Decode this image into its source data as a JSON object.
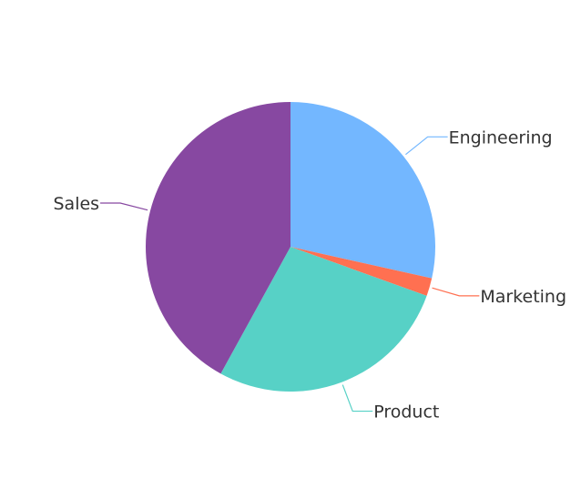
{
  "chart_data": {
    "type": "pie",
    "title": "",
    "legend": "none",
    "slices": [
      {
        "name": "Engineering",
        "value": 28.5,
        "color": "#73b7ff"
      },
      {
        "name": "Marketing",
        "value": 2.0,
        "color": "#ff7051"
      },
      {
        "name": "Product",
        "value": 27.5,
        "color": "#57d1c6"
      },
      {
        "name": "Sales",
        "value": 42.0,
        "color": "#8748a1"
      }
    ]
  }
}
